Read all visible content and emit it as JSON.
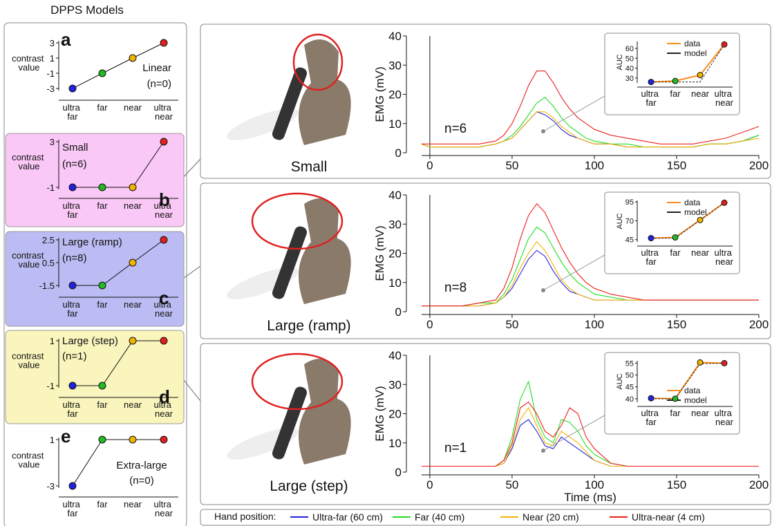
{
  "title": "DPPS Models",
  "legend_title": "Hand position:",
  "chart_data": [
    {
      "type": "line",
      "panel_label": "a",
      "title": "Linear",
      "annotation": "(n=0)",
      "ylabel": "contrast value",
      "categories": [
        "ultra far",
        "far",
        "near",
        "ultra near"
      ],
      "values": [
        -3,
        -1,
        1,
        3
      ],
      "point_colors": [
        "#2222dd",
        "#22bb22",
        "#f0b400",
        "#e02020"
      ],
      "ylim": [
        -3,
        3
      ],
      "yticks": [
        -3,
        -1,
        1,
        3
      ],
      "background": "#ffffff"
    },
    {
      "type": "line",
      "panel_label": "b",
      "title": "Small",
      "annotation": "(n=6)",
      "ylabel": "contrast value",
      "categories": [
        "ultra far",
        "far",
        "near",
        "ultra near"
      ],
      "values": [
        -1,
        -1,
        -1,
        3
      ],
      "point_colors": [
        "#2222dd",
        "#22bb22",
        "#f0b400",
        "#e02020"
      ],
      "ylim": [
        -1,
        3
      ],
      "yticks": [
        -1,
        3
      ],
      "background": "#f9c8f6"
    },
    {
      "type": "line",
      "panel_label": "c",
      "title": "Large (ramp)",
      "annotation": "(n=8)",
      "ylabel": "contrast value",
      "categories": [
        "ultra far",
        "far",
        "near",
        "ultra near"
      ],
      "values": [
        -1.5,
        -1.5,
        0.5,
        2.5
      ],
      "point_colors": [
        "#2222dd",
        "#22bb22",
        "#f0b400",
        "#e02020"
      ],
      "ylim": [
        -1.5,
        2.5
      ],
      "yticks": [
        -1.5,
        0.5,
        2.5
      ],
      "background": "#bcbcf4"
    },
    {
      "type": "line",
      "panel_label": "d",
      "title": "Large (step)",
      "annotation": "(n=1)",
      "ylabel": "contrast value",
      "categories": [
        "ultra far",
        "far",
        "near",
        "ultra near"
      ],
      "values": [
        -1,
        -1,
        1,
        1
      ],
      "point_colors": [
        "#2222dd",
        "#22bb22",
        "#f0b400",
        "#e02020"
      ],
      "ylim": [
        -1,
        1
      ],
      "yticks": [
        -1,
        1
      ],
      "background": "#f9f5bd"
    },
    {
      "type": "line",
      "panel_label": "e",
      "title": "Extra-large",
      "annotation": "(n=0)",
      "ylabel": "contrast value",
      "categories": [
        "ultra far",
        "far",
        "near",
        "ultra near"
      ],
      "values": [
        -3,
        1,
        1,
        1
      ],
      "point_colors": [
        "#2222dd",
        "#22bb22",
        "#f0b400",
        "#e02020"
      ],
      "ylim": [
        -3,
        1
      ],
      "yticks": [
        -3,
        1
      ],
      "background": "#ffffff"
    },
    {
      "type": "line",
      "title": "Small",
      "annotation": "n=6",
      "ylabel": "EMG (mV)",
      "x": [
        -5,
        0,
        10,
        20,
        30,
        40,
        45,
        50,
        55,
        60,
        65,
        70,
        75,
        80,
        85,
        90,
        95,
        100,
        110,
        120,
        130,
        140,
        150,
        160,
        170,
        180,
        190,
        200
      ],
      "series": [
        {
          "name": "Ultra-far (60 cm)",
          "color": "#2222dd",
          "values": [
            3,
            2,
            2,
            2,
            2,
            3,
            4,
            5,
            8,
            11,
            14,
            13,
            11,
            8,
            6,
            5,
            4,
            3,
            3,
            2,
            2,
            2,
            2,
            2,
            3,
            3,
            4,
            6
          ]
        },
        {
          "name": "Far (40 cm)",
          "color": "#22dd22",
          "values": [
            3,
            2,
            2,
            2,
            2,
            3,
            4,
            6,
            9,
            13,
            17,
            19,
            16,
            12,
            9,
            7,
            5,
            4,
            3,
            3,
            2,
            2,
            2,
            2,
            3,
            3,
            4,
            6
          ]
        },
        {
          "name": "Near (20 cm)",
          "color": "#f0b400",
          "values": [
            3,
            2,
            2,
            2,
            2,
            3,
            4,
            5,
            8,
            11,
            14,
            14,
            12,
            9,
            7,
            5,
            4,
            3,
            3,
            2,
            2,
            2,
            2,
            2,
            3,
            3,
            4,
            5
          ]
        },
        {
          "name": "Ultra-near (4 cm)",
          "color": "#ee1c1c",
          "values": [
            3,
            3,
            3,
            3,
            3,
            4,
            6,
            10,
            16,
            23,
            28,
            28,
            24,
            19,
            15,
            12,
            10,
            8,
            6,
            5,
            4,
            3,
            3,
            3,
            4,
            5,
            7,
            9
          ]
        }
      ],
      "xlim": [
        -5,
        200
      ],
      "xticks": [
        0,
        50,
        100,
        150,
        200
      ],
      "ylim": [
        0,
        40
      ],
      "yticks": [
        0,
        10,
        20,
        30,
        40
      ],
      "inset": {
        "ylabel": "AUC",
        "legend": "upper right",
        "categories": [
          "ultra far",
          "far",
          "near",
          "ultra near"
        ],
        "point_colors": [
          "#2222dd",
          "#22bb22",
          "#f0b400",
          "#e02020"
        ],
        "ylim": [
          25,
          67
        ],
        "yticks": [
          30,
          40,
          50,
          60
        ],
        "series": [
          {
            "name": "data",
            "color": "#ff8c1a",
            "values": [
              26,
              27,
              33,
              64
            ]
          },
          {
            "name": "model",
            "color": "#222222",
            "values": [
              26,
              26,
              26,
              64
            ]
          }
        ]
      }
    },
    {
      "type": "line",
      "title": "Large (ramp)",
      "annotation": "n=8",
      "ylabel": "EMG (mV)",
      "x": [
        -5,
        0,
        10,
        20,
        30,
        40,
        45,
        50,
        55,
        60,
        65,
        70,
        75,
        80,
        85,
        90,
        95,
        100,
        110,
        120,
        130,
        140,
        150,
        160,
        170,
        180,
        190,
        200
      ],
      "series": [
        {
          "name": "Ultra-far (60 cm)",
          "color": "#2222dd",
          "values": [
            2,
            2,
            2,
            2,
            2,
            3,
            5,
            8,
            13,
            18,
            21,
            19,
            14,
            10,
            7,
            6,
            5,
            4,
            4,
            4,
            4,
            4,
            4,
            4,
            4,
            4,
            4,
            4
          ]
        },
        {
          "name": "Far (40 cm)",
          "color": "#22dd22",
          "values": [
            2,
            2,
            2,
            2,
            3,
            3,
            6,
            11,
            18,
            25,
            29,
            27,
            22,
            17,
            13,
            10,
            8,
            6,
            5,
            4,
            4,
            4,
            4,
            4,
            4,
            4,
            4,
            4
          ]
        },
        {
          "name": "Near (20 cm)",
          "color": "#f0b400",
          "values": [
            2,
            2,
            2,
            2,
            2,
            3,
            5,
            9,
            15,
            20,
            24,
            21,
            16,
            11,
            8,
            6,
            5,
            4,
            4,
            4,
            4,
            4,
            4,
            4,
            4,
            4,
            4,
            4
          ]
        },
        {
          "name": "Ultra-near (4 cm)",
          "color": "#ee1c1c",
          "values": [
            2,
            2,
            2,
            2,
            3,
            4,
            8,
            15,
            25,
            33,
            37,
            34,
            28,
            22,
            17,
            13,
            10,
            8,
            6,
            5,
            4,
            4,
            4,
            4,
            4,
            4,
            4,
            4
          ]
        }
      ],
      "xlim": [
        -5,
        200
      ],
      "xticks": [
        0,
        50,
        100,
        150,
        200
      ],
      "ylim": [
        0,
        40
      ],
      "yticks": [
        0,
        10,
        20,
        30,
        40
      ],
      "inset": {
        "ylabel": "AUC",
        "legend": "upper right",
        "categories": [
          "ultra far",
          "far",
          "near",
          "ultra near"
        ],
        "point_colors": [
          "#2222dd",
          "#22bb22",
          "#f0b400",
          "#e02020"
        ],
        "ylim": [
          42,
          97
        ],
        "yticks": [
          45,
          70,
          95
        ],
        "series": [
          {
            "name": "data",
            "color": "#ff8c1a",
            "values": [
              47,
              48,
              71,
              94
            ]
          },
          {
            "name": "model",
            "color": "#222222",
            "values": [
              47,
              47,
              71,
              94
            ]
          }
        ]
      }
    },
    {
      "type": "line",
      "title": "Large (step)",
      "annotation": "n=1",
      "ylabel": "EMG (mV)",
      "xlabel": "Time (ms)",
      "x": [
        -5,
        0,
        10,
        20,
        30,
        40,
        45,
        50,
        55,
        60,
        65,
        70,
        75,
        80,
        85,
        90,
        95,
        100,
        110,
        120,
        130,
        140,
        150,
        160,
        170,
        180,
        190,
        200
      ],
      "series": [
        {
          "name": "Ultra-far (60 cm)",
          "color": "#2222dd",
          "values": [
            2,
            2,
            2,
            2,
            2,
            2,
            3,
            8,
            16,
            18,
            14,
            9,
            8,
            12,
            10,
            8,
            6,
            4,
            2,
            2,
            2,
            2,
            2,
            2,
            2,
            2,
            2,
            2
          ]
        },
        {
          "name": "Far (40 cm)",
          "color": "#22dd22",
          "values": [
            2,
            2,
            2,
            2,
            2,
            2,
            4,
            12,
            25,
            31,
            18,
            12,
            10,
            18,
            17,
            14,
            9,
            6,
            3,
            2,
            2,
            2,
            2,
            2,
            2,
            2,
            2,
            2
          ]
        },
        {
          "name": "Near (20 cm)",
          "color": "#f0b400",
          "values": [
            2,
            2,
            2,
            2,
            2,
            2,
            3,
            9,
            18,
            22,
            16,
            10,
            9,
            14,
            12,
            10,
            7,
            4,
            2,
            2,
            2,
            2,
            2,
            2,
            2,
            2,
            2,
            2
          ]
        },
        {
          "name": "Ultra-near (4 cm)",
          "color": "#ee1c1c",
          "values": [
            2,
            2,
            2,
            2,
            2,
            2,
            4,
            10,
            22,
            24,
            20,
            14,
            12,
            16,
            22,
            20,
            12,
            8,
            3,
            2,
            2,
            2,
            2,
            2,
            2,
            2,
            2,
            2
          ]
        }
      ],
      "xlim": [
        -5,
        200
      ],
      "xticks": [
        0,
        50,
        100,
        150,
        200
      ],
      "ylim": [
        0,
        40
      ],
      "yticks": [
        0,
        10,
        20,
        30,
        40
      ],
      "inset": {
        "ylabel": "AUC",
        "legend": "lower right",
        "categories": [
          "ultra far",
          "far",
          "near",
          "ultra near"
        ],
        "point_colors": [
          "#2222dd",
          "#22bb22",
          "#f0b400",
          "#e02020"
        ],
        "ylim": [
          38.5,
          56
        ],
        "yticks": [
          40,
          45,
          50,
          55
        ],
        "series": [
          {
            "name": "data",
            "color": "#ff8c1a",
            "values": [
              40.2,
              40,
              55.3,
              55
            ]
          },
          {
            "name": "model",
            "color": "#222222",
            "values": [
              40,
              40,
              54.8,
              55
            ]
          }
        ]
      }
    }
  ]
}
